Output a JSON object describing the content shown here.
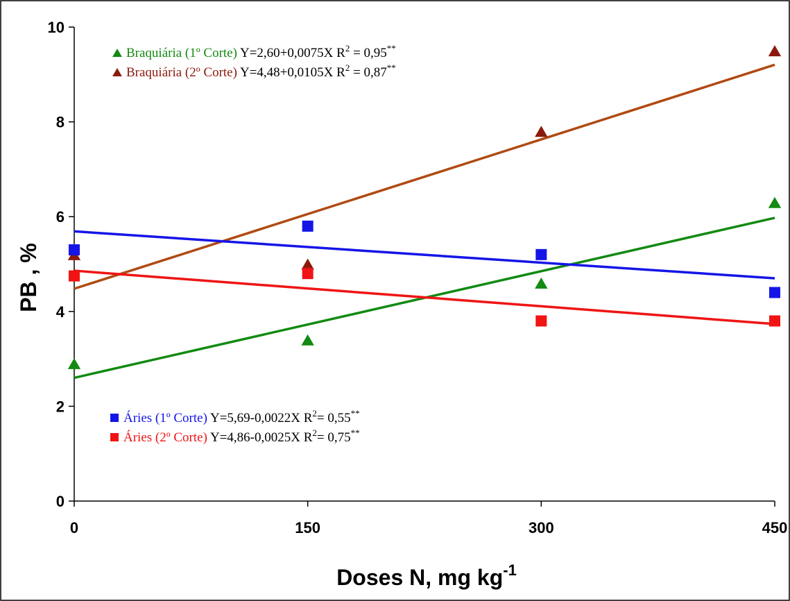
{
  "chart_data": {
    "type": "scatter",
    "xlabel": "Doses N, mg kg",
    "xlabel_sup": "-1",
    "ylabel": "PB , %",
    "xlim": [
      0,
      450
    ],
    "ylim": [
      0,
      10
    ],
    "x_ticks": [
      "0",
      "150",
      "300",
      "450"
    ],
    "y_ticks": [
      "0",
      "2",
      "4",
      "6",
      "8",
      "10"
    ],
    "grid": false,
    "series": [
      {
        "name": "Braquiária (1º Corte)",
        "marker": "triangle",
        "color": "#138a13",
        "line_color": "#138a13",
        "x": [
          0,
          150,
          300,
          450
        ],
        "y": [
          2.9,
          3.4,
          4.6,
          6.3
        ],
        "fit": {
          "intercept": 2.6,
          "slope": 0.0075
        },
        "equation": "Y=2,60+0,0075X",
        "r2_label": "R",
        "r2_exp": "2",
        "r2_value": " = 0,95",
        "signif": "**"
      },
      {
        "name": "Braquiária (2º Corte)",
        "marker": "triangle",
        "color": "#8b1a0e",
        "line_color": "#b04a12",
        "x": [
          0,
          150,
          300,
          450
        ],
        "y": [
          5.2,
          5.0,
          7.8,
          9.5
        ],
        "fit": {
          "intercept": 4.48,
          "slope": 0.0105
        },
        "equation": "Y=4,48+0,0105X",
        "r2_label": "R",
        "r2_exp": "2",
        "r2_value": " = 0,87",
        "signif": "**"
      },
      {
        "name": "Áries (1º Corte)",
        "marker": "square",
        "color": "#1515e8",
        "line_color": "#1515e8",
        "x": [
          0,
          150,
          300,
          450
        ],
        "y": [
          5.3,
          5.8,
          5.2,
          4.4
        ],
        "fit": {
          "intercept": 5.69,
          "slope": -0.0022
        },
        "equation": "Y=5,69-0,0022X",
        "r2_label": "R",
        "r2_exp": "2",
        "r2_value": "= 0,55",
        "signif": "**"
      },
      {
        "name": "Áries (2º Corte)",
        "marker": "square",
        "color": "#f01414",
        "line_color": "#f01414",
        "x": [
          0,
          150,
          300,
          450
        ],
        "y": [
          4.75,
          4.8,
          3.8,
          3.8
        ],
        "fit": {
          "intercept": 4.86,
          "slope": -0.0025
        },
        "equation": "Y=4,86-0,0025X",
        "r2_label": "R",
        "r2_exp": "2",
        "r2_value": "= 0,75",
        "signif": "**"
      }
    ]
  }
}
